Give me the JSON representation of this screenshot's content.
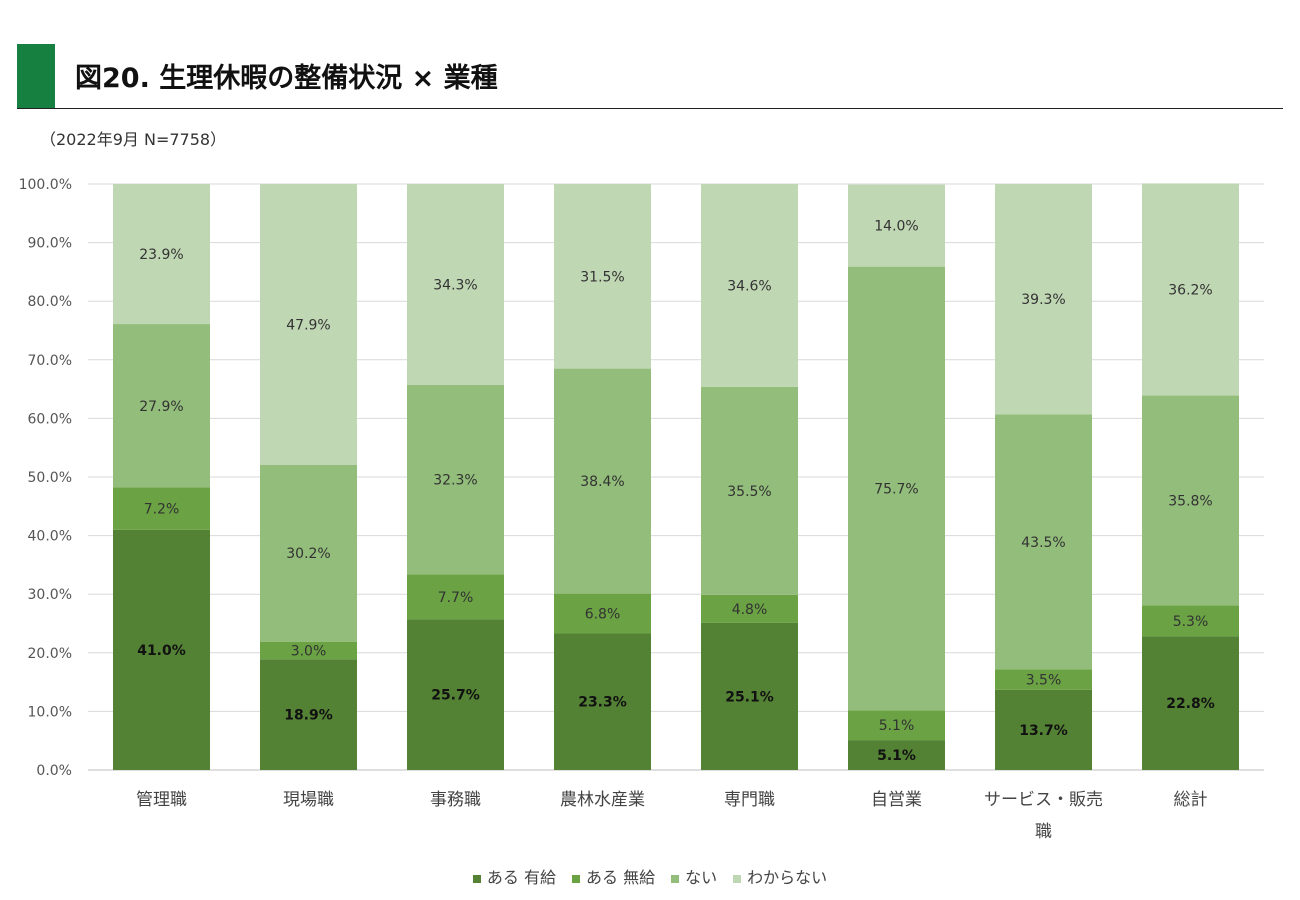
{
  "header": {
    "title": "図20. 生理休暇の整備状況 × 業種",
    "subtitle": "（2022年9月 N=7758）"
  },
  "chart_data": {
    "type": "bar",
    "stacked": true,
    "title": "図20. 生理休暇の整備状況 × 業種",
    "subtitle": "（2022年9月 N=7758）",
    "xlabel": "",
    "ylabel": "",
    "ylim": [
      0,
      100
    ],
    "yticks": [
      "0.0%",
      "10.0%",
      "20.0%",
      "30.0%",
      "40.0%",
      "50.0%",
      "60.0%",
      "70.0%",
      "80.0%",
      "90.0%",
      "100.0%"
    ],
    "grid": true,
    "legend_position": "bottom",
    "categories": [
      "管理職",
      "現場職",
      "事務職",
      "農林水産業",
      "専門職",
      "自営業",
      "サービス・販売職",
      "総計"
    ],
    "category_lines": [
      [
        "管理職"
      ],
      [
        "現場職"
      ],
      [
        "事務職"
      ],
      [
        "農林水産業"
      ],
      [
        "専門職"
      ],
      [
        "自営業"
      ],
      [
        "サービス・販売",
        "職"
      ],
      [
        "総計"
      ]
    ],
    "series": [
      {
        "name": "ある 有給",
        "color": "#548235",
        "values": [
          41.0,
          18.9,
          25.7,
          23.3,
          25.1,
          5.1,
          13.7,
          22.8
        ],
        "labels": [
          "41.0%",
          "18.9%",
          "25.7%",
          "23.3%",
          "25.1%",
          "5.1%",
          "13.7%",
          "22.8%"
        ]
      },
      {
        "name": "ある 無給",
        "color": "#6aa244",
        "values": [
          7.2,
          3.0,
          7.7,
          6.8,
          4.8,
          5.1,
          3.5,
          5.3
        ],
        "labels": [
          "7.2%",
          "3.0%",
          "7.7%",
          "6.8%",
          "4.8%",
          "5.1%",
          "3.5%",
          "5.3%"
        ]
      },
      {
        "name": "ない",
        "color": "#93bd7a",
        "values": [
          27.9,
          30.2,
          32.3,
          38.4,
          35.5,
          75.7,
          43.5,
          35.8
        ],
        "labels": [
          "27.9%",
          "30.2%",
          "32.3%",
          "38.4%",
          "35.5%",
          "75.7%",
          "43.5%",
          "35.8%"
        ]
      },
      {
        "name": "わからない",
        "color": "#c0d7b4",
        "values": [
          23.9,
          47.9,
          34.3,
          31.5,
          34.6,
          14.0,
          39.3,
          36.2
        ],
        "labels": [
          "23.9%",
          "47.9%",
          "34.3%",
          "31.5%",
          "34.6%",
          "14.0%",
          "39.3%",
          "36.2%"
        ]
      }
    ]
  }
}
